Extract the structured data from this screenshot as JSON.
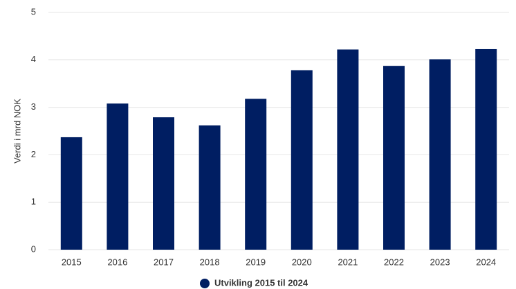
{
  "chart_data": {
    "type": "bar",
    "y_label": "Verdi i mrd NOK",
    "categories": [
      "2015",
      "2016",
      "2017",
      "2018",
      "2019",
      "2020",
      "2021",
      "2022",
      "2023",
      "2024"
    ],
    "series": [
      {
        "name": "Utvikling 2015 til 2024",
        "color": "#001e62",
        "values": [
          2.37,
          3.08,
          2.79,
          2.62,
          3.18,
          3.78,
          4.22,
          3.87,
          4.01,
          4.23
        ]
      }
    ],
    "ylim": [
      0,
      5
    ],
    "yticks": [
      0,
      1,
      2,
      3,
      4,
      5
    ],
    "grid": true,
    "legend": "bottom"
  }
}
